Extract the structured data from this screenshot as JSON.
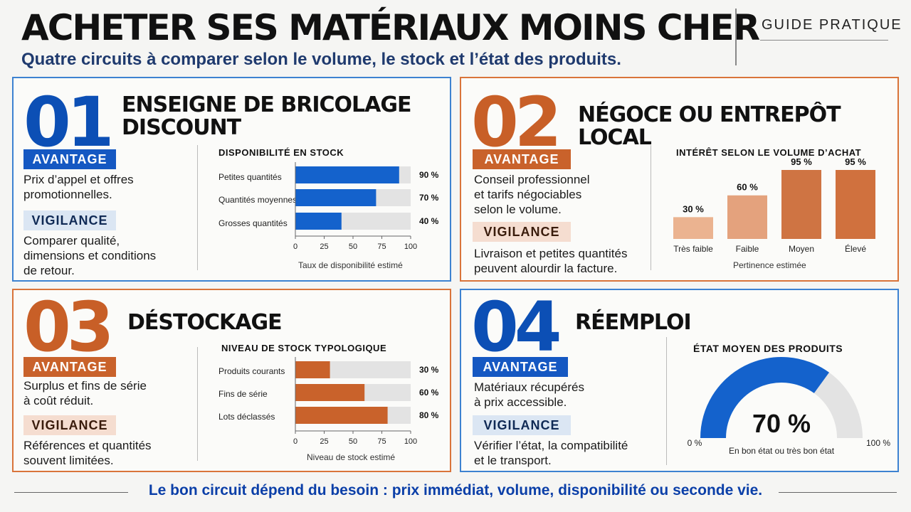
{
  "header": {
    "title": "ACHETER SES MATÉRIAUX MOINS CHER",
    "subtitle": "Quatre circuits à comparer selon le volume, le stock et l’état des produits.",
    "badge": "GUIDE PRATIQUE"
  },
  "panels": [
    {
      "number": "01",
      "title_line1": "ENSEIGNE DE BRICOLAGE",
      "title_line2": "DISCOUNT",
      "advantage_label": "AVANTAGE",
      "advantage_text_1": "Prix d’appel et offres",
      "advantage_text_2": "promotionnelles.",
      "vigilance_label": "VIGILANCE",
      "vigilance_text_1": "Comparer qualité,",
      "vigilance_text_2": "dimensions et conditions",
      "vigilance_text_3": "de retour."
    },
    {
      "number": "02",
      "title_line1": "NÉGOCE OU ENTREPÔT LOCAL",
      "advantage_label": "AVANTAGE",
      "advantage_text_1": "Conseil professionnel",
      "advantage_text_2": "et tarifs négociables",
      "advantage_text_3": "selon le volume.",
      "vigilance_label": "VIGILANCE",
      "vigilance_text_1": "Livraison et petites quantités",
      "vigilance_text_2": "peuvent alourdir la facture."
    },
    {
      "number": "03",
      "title_line1": "DÉSTOCKAGE",
      "advantage_label": "AVANTAGE",
      "advantage_text_1": "Surplus et fins de série",
      "advantage_text_2": "à coût réduit.",
      "vigilance_label": "VIGILANCE",
      "vigilance_text_1": "Références et quantités",
      "vigilance_text_2": "souvent limitées."
    },
    {
      "number": "04",
      "title_line1": "RÉEMPLOI",
      "advantage_label": "AVANTAGE",
      "advantage_text_1": "Matériaux récupérés",
      "advantage_text_2": "à prix accessible.",
      "vigilance_label": "VIGILANCE",
      "vigilance_text_1": "Vérifier l’état, la compatibilité",
      "vigilance_text_2": "et le transport."
    }
  ],
  "chart_data": [
    {
      "type": "bar",
      "orientation": "horizontal",
      "title": "DISPONIBILITÉ EN STOCK",
      "categories": [
        "Petites quantités",
        "Quantités moyennes",
        "Grosses quantités"
      ],
      "values": [
        90,
        70,
        40
      ],
      "value_labels": [
        "90 %",
        "70 %",
        "40 %"
      ],
      "xlabel": "Taux de disponibilité estimé",
      "xlim": [
        0,
        100
      ],
      "ticks": [
        "0",
        "25",
        "50",
        "75",
        "100"
      ],
      "color": "#1462cc",
      "track_color": "#e3e3e3"
    },
    {
      "type": "bar",
      "orientation": "vertical",
      "title": "INTÉRÊT SELON LE VOLUME D’ACHAT",
      "categories": [
        "Très faible",
        "Faible",
        "Moyen",
        "Élevé"
      ],
      "values": [
        30,
        60,
        95,
        95
      ],
      "value_labels": [
        "30 %",
        "60 %",
        "95 %",
        "95 %"
      ],
      "xlabel": "Pertinence estimée",
      "colors": [
        "#ebb390",
        "#e4a27d",
        "#cf7443",
        "#d0713e"
      ]
    },
    {
      "type": "bar",
      "orientation": "horizontal",
      "title": "NIVEAU DE STOCK TYPOLOGIQUE",
      "categories": [
        "Produits courants",
        "Fins de série",
        "Lots déclassés"
      ],
      "values": [
        30,
        60,
        80
      ],
      "value_labels": [
        "30 %",
        "60 %",
        "80 %"
      ],
      "xlabel": "Niveau de stock estimé",
      "xlim": [
        0,
        100
      ],
      "ticks": [
        "0",
        "25",
        "50",
        "75",
        "100"
      ],
      "color": "#c9622b",
      "track_color": "#e3e3e3"
    },
    {
      "type": "gauge",
      "title": "ÉTAT MOYEN DES PRODUITS",
      "value": 70,
      "value_label": "70 %",
      "min_label": "0 %",
      "max_label": "100 %",
      "caption": "En bon état ou très bon état",
      "color": "#1462cc",
      "track_color": "#e3e3e3"
    }
  ],
  "footer": {
    "text": "Le bon circuit dépend du besoin : prix immédiat, volume, disponibilité ou seconde vie."
  }
}
